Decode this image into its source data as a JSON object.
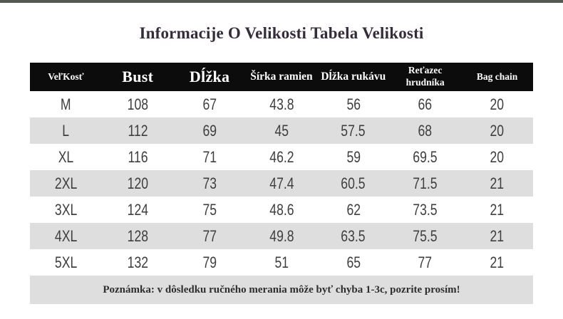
{
  "title": "Informacije O Velikosti Tabela Velikosti",
  "table": {
    "columns": [
      {
        "label": "VeľKosť"
      },
      {
        "label": "Bust"
      },
      {
        "label": "Dĺžka"
      },
      {
        "label": "Šírka ramien"
      },
      {
        "label": "Dĺžka rukávu"
      },
      {
        "label": "Reťazec hrudníka"
      },
      {
        "label": "Bag chain"
      }
    ],
    "rows": [
      [
        "M",
        "108",
        "67",
        "43.8",
        "56",
        "66",
        "20"
      ],
      [
        "L",
        "112",
        "69",
        "45",
        "57.5",
        "68",
        "20"
      ],
      [
        "XL",
        "116",
        "71",
        "46.2",
        "59",
        "69.5",
        "20"
      ],
      [
        "2XL",
        "120",
        "73",
        "47.4",
        "60.5",
        "71.5",
        "21"
      ],
      [
        "3XL",
        "124",
        "75",
        "48.6",
        "62",
        "73.5",
        "21"
      ],
      [
        "4XL",
        "128",
        "77",
        "49.8",
        "63.5",
        "75.5",
        "21"
      ],
      [
        "5XL",
        "132",
        "79",
        "51",
        "65",
        "77",
        "21"
      ]
    ],
    "note": "Poznámka: v dôsledku ručného merania môže byť chyba 1-3c, pozrite prosím!"
  },
  "colors": {
    "top_bar": "#545a52",
    "title_text": "#352c3b",
    "header_background": "#0c0c0c",
    "header_text": "#ffffff",
    "stripe_row": "#dedede",
    "note_background": "#dedede",
    "data_text": "#3e3e3e"
  }
}
